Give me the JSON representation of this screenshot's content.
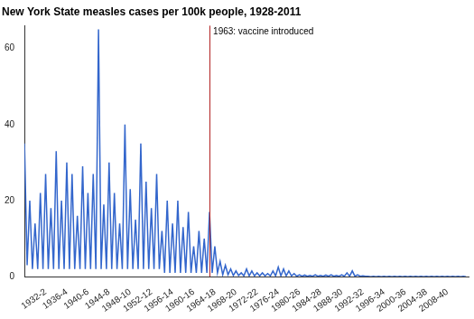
{
  "chart_data": {
    "type": "line",
    "title": "New York State measles cases per 100k people, 1928-2011",
    "color": "#3366cc",
    "grid": false,
    "x": [
      1928,
      1928.5,
      1929,
      1929.5,
      1930,
      1930.5,
      1931,
      1931.5,
      1932,
      1932.5,
      1933,
      1933.5,
      1934,
      1934.5,
      1935,
      1935.5,
      1936,
      1936.5,
      1937,
      1937.5,
      1938,
      1938.5,
      1939,
      1939.5,
      1940,
      1940.5,
      1941,
      1941.5,
      1942,
      1942.5,
      1943,
      1943.5,
      1944,
      1944.5,
      1945,
      1945.5,
      1946,
      1946.5,
      1947,
      1947.5,
      1948,
      1948.5,
      1949,
      1949.5,
      1950,
      1950.5,
      1951,
      1951.5,
      1952,
      1952.5,
      1953,
      1953.5,
      1954,
      1954.5,
      1955,
      1955.5,
      1956,
      1956.5,
      1957,
      1957.5,
      1958,
      1958.5,
      1959,
      1959.5,
      1960,
      1960.5,
      1961,
      1961.5,
      1962,
      1962.5,
      1963,
      1963.5,
      1964,
      1964.5,
      1965,
      1965.5,
      1966,
      1966.5,
      1967,
      1967.5,
      1968,
      1968.5,
      1969,
      1969.5,
      1970,
      1970.5,
      1971,
      1971.5,
      1972,
      1972.5,
      1973,
      1973.5,
      1974,
      1974.5,
      1975,
      1975.5,
      1976,
      1976.5,
      1977,
      1977.5,
      1978,
      1978.5,
      1979,
      1979.5,
      1980,
      1980.5,
      1981,
      1981.5,
      1982,
      1982.5,
      1983,
      1983.5,
      1984,
      1984.5,
      1985,
      1985.5,
      1986,
      1986.5,
      1987,
      1987.5,
      1988,
      1988.5,
      1989,
      1989.5,
      1990,
      1990.5,
      1991,
      1991.5,
      1992,
      1992.5,
      1993,
      1993.5,
      1994,
      1994.5,
      1995,
      1995.5,
      1996,
      1996.5,
      1997,
      1997.5,
      1998,
      1998.5,
      1999,
      1999.5,
      2000,
      2000.5,
      2001,
      2001.5,
      2002,
      2002.5,
      2003,
      2003.5,
      2004,
      2004.5,
      2005,
      2005.5,
      2006,
      2006.5,
      2007,
      2007.5,
      2008,
      2008.5,
      2009,
      2009.5,
      2010,
      2010.5,
      2011,
      2011.5
    ],
    "values": [
      35,
      3,
      20,
      2,
      14,
      2,
      22,
      2,
      27,
      2,
      18,
      2,
      33,
      2,
      20,
      2,
      30,
      2,
      27,
      2,
      16,
      2,
      29,
      2,
      22,
      2,
      27,
      2,
      65,
      2,
      19,
      2,
      30,
      2,
      22,
      2,
      14,
      2,
      40,
      2,
      23,
      2,
      15,
      2,
      35,
      2,
      25,
      2,
      18,
      2,
      27,
      2,
      12,
      1,
      20,
      1,
      14,
      1,
      20,
      1,
      13,
      1,
      17,
      1,
      8,
      1,
      12,
      1,
      10,
      1,
      17,
      1,
      8,
      1,
      4,
      0.5,
      3,
      0.5,
      2,
      0.3,
      1.5,
      0.3,
      1,
      0.2,
      2,
      0.2,
      1.5,
      0.2,
      1,
      0.2,
      1,
      0.2,
      0.8,
      0.2,
      1.5,
      0.2,
      2.5,
      0.2,
      2,
      0.2,
      1.5,
      0.2,
      0.8,
      0.1,
      0.5,
      0.1,
      0.4,
      0.1,
      0.3,
      0.1,
      0.5,
      0.1,
      0.3,
      0.1,
      0.4,
      0.1,
      0.5,
      0.1,
      0.3,
      0.1,
      0.5,
      0.1,
      1,
      0.1,
      1.5,
      0.1,
      0.5,
      0.1,
      0.2,
      0.1,
      0.1,
      0,
      0.1,
      0,
      0.1,
      0,
      0.1,
      0,
      0.1,
      0,
      0.1,
      0,
      0.1,
      0,
      0.1,
      0,
      0.1,
      0,
      0.1,
      0,
      0.1,
      0,
      0.1,
      0,
      0.1,
      0,
      0.1,
      0,
      0.1,
      0,
      0.1,
      0,
      0.1,
      0,
      0.1,
      0,
      0.1,
      0
    ],
    "xlim": [
      1928,
      2012
    ],
    "xticks": [
      {
        "value": 1932,
        "label": "1932-2"
      },
      {
        "value": 1936,
        "label": "1936-4"
      },
      {
        "value": 1940,
        "label": "1940-6"
      },
      {
        "value": 1944,
        "label": "1944-8"
      },
      {
        "value": 1948,
        "label": "1948-10"
      },
      {
        "value": 1952,
        "label": "1952-12"
      },
      {
        "value": 1956,
        "label": "1956-14"
      },
      {
        "value": 1960,
        "label": "1960-16"
      },
      {
        "value": 1964,
        "label": "1964-18"
      },
      {
        "value": 1968,
        "label": "1968-20"
      },
      {
        "value": 1972,
        "label": "1972-22"
      },
      {
        "value": 1976,
        "label": "1976-24"
      },
      {
        "value": 1980,
        "label": "1980-26"
      },
      {
        "value": 1984,
        "label": "1984-28"
      },
      {
        "value": 1988,
        "label": "1988-30"
      },
      {
        "value": 1992,
        "label": "1992-32"
      },
      {
        "value": 1996,
        "label": "1996-34"
      },
      {
        "value": 2000,
        "label": "2000-36"
      },
      {
        "value": 2004,
        "label": "2004-38"
      },
      {
        "value": 2008,
        "label": "2008-40"
      }
    ],
    "ylim": [
      0,
      66
    ],
    "yticks": [
      0,
      20,
      40,
      60
    ],
    "annotations": [
      {
        "text": "1963: vaccine introduced",
        "x": 1963,
        "color": "#b22222"
      }
    ]
  }
}
